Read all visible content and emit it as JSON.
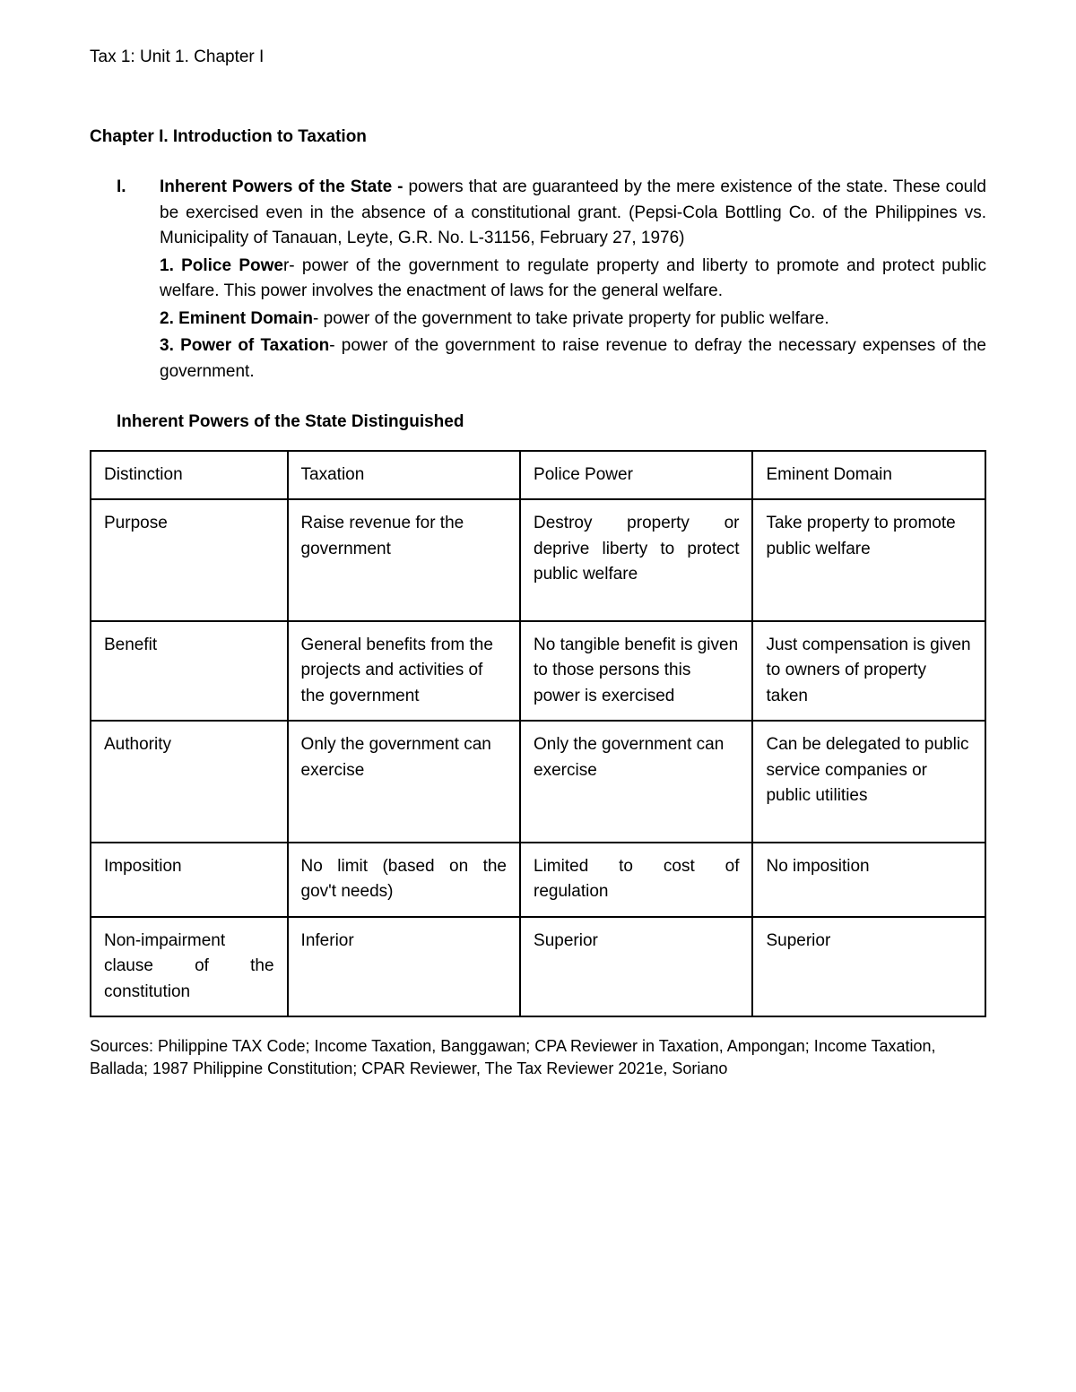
{
  "header": "Tax 1: Unit 1. Chapter I",
  "chapter_title": "Chapter I. Introduction to Taxation",
  "section": {
    "num": "I.",
    "title": "Inherent Powers of the State - ",
    "intro": "powers that are guaranteed by the mere existence of the state. These could be exercised even in the absence of a constitutional grant. (Pepsi-Cola Bottling Co. of the Philippines vs. Municipality of Tanauan, Leyte, G.R. No. L-31156, February 27, 1976)",
    "items": [
      {
        "title": "1. Police Powe",
        "rest": "r- power of the government to regulate property and liberty to promote and protect public welfare. This power involves the enactment of laws for the general welfare."
      },
      {
        "title": "2. Eminent Domain",
        "rest": "- power of the government to take private property for public welfare."
      },
      {
        "title": "3. Power of Taxation",
        "rest": "- power of the government to raise revenue to defray the necessary expenses of the government."
      }
    ]
  },
  "table_heading": "Inherent Powers of the State Distinguished",
  "table": {
    "columns": [
      "Distinction",
      "Taxation",
      "Police Power",
      "Eminent Domain"
    ],
    "rows": [
      {
        "c0": "Purpose",
        "c1": "Raise revenue for the government",
        "c2": "Destroy property or deprive liberty to protect public welfare",
        "c3": "Take property to promote public welfare",
        "justify": [
          false,
          false,
          true,
          false
        ],
        "tall": true
      },
      {
        "c0": "Benefit",
        "c1": "General benefits from the projects and activities of the government",
        "c2": "No tangible benefit is given to those persons this power is exercised",
        "c3": "Just compensation is given to owners of property taken",
        "justify": [
          false,
          false,
          false,
          false
        ],
        "tall": false
      },
      {
        "c0": "Authority",
        "c1": "Only the government can exercise",
        "c2": "Only the government can exercise",
        "c3": "Can be delegated to public service companies or public utilities",
        "justify": [
          false,
          false,
          false,
          false
        ],
        "tall": true
      },
      {
        "c0": "Imposition",
        "c1": "No limit (based on the gov't needs)",
        "c2": "Limited to cost of regulation",
        "c3": "No imposition",
        "justify": [
          false,
          true,
          true,
          false
        ],
        "tall": false
      },
      {
        "c0": "Non-impairment clause of the constitution",
        "c1": "Inferior",
        "c2": "Superior",
        "c3": "Superior",
        "justify": [
          true,
          false,
          false,
          false
        ],
        "tall": false
      }
    ]
  },
  "sources": "Sources: Philippine TAX Code; Income Taxation, Banggawan; CPA Reviewer in Taxation, Ampongan; Income Taxation, Ballada; 1987 Philippine Constitution; CPAR Reviewer, The Tax Reviewer 2021e, Soriano"
}
